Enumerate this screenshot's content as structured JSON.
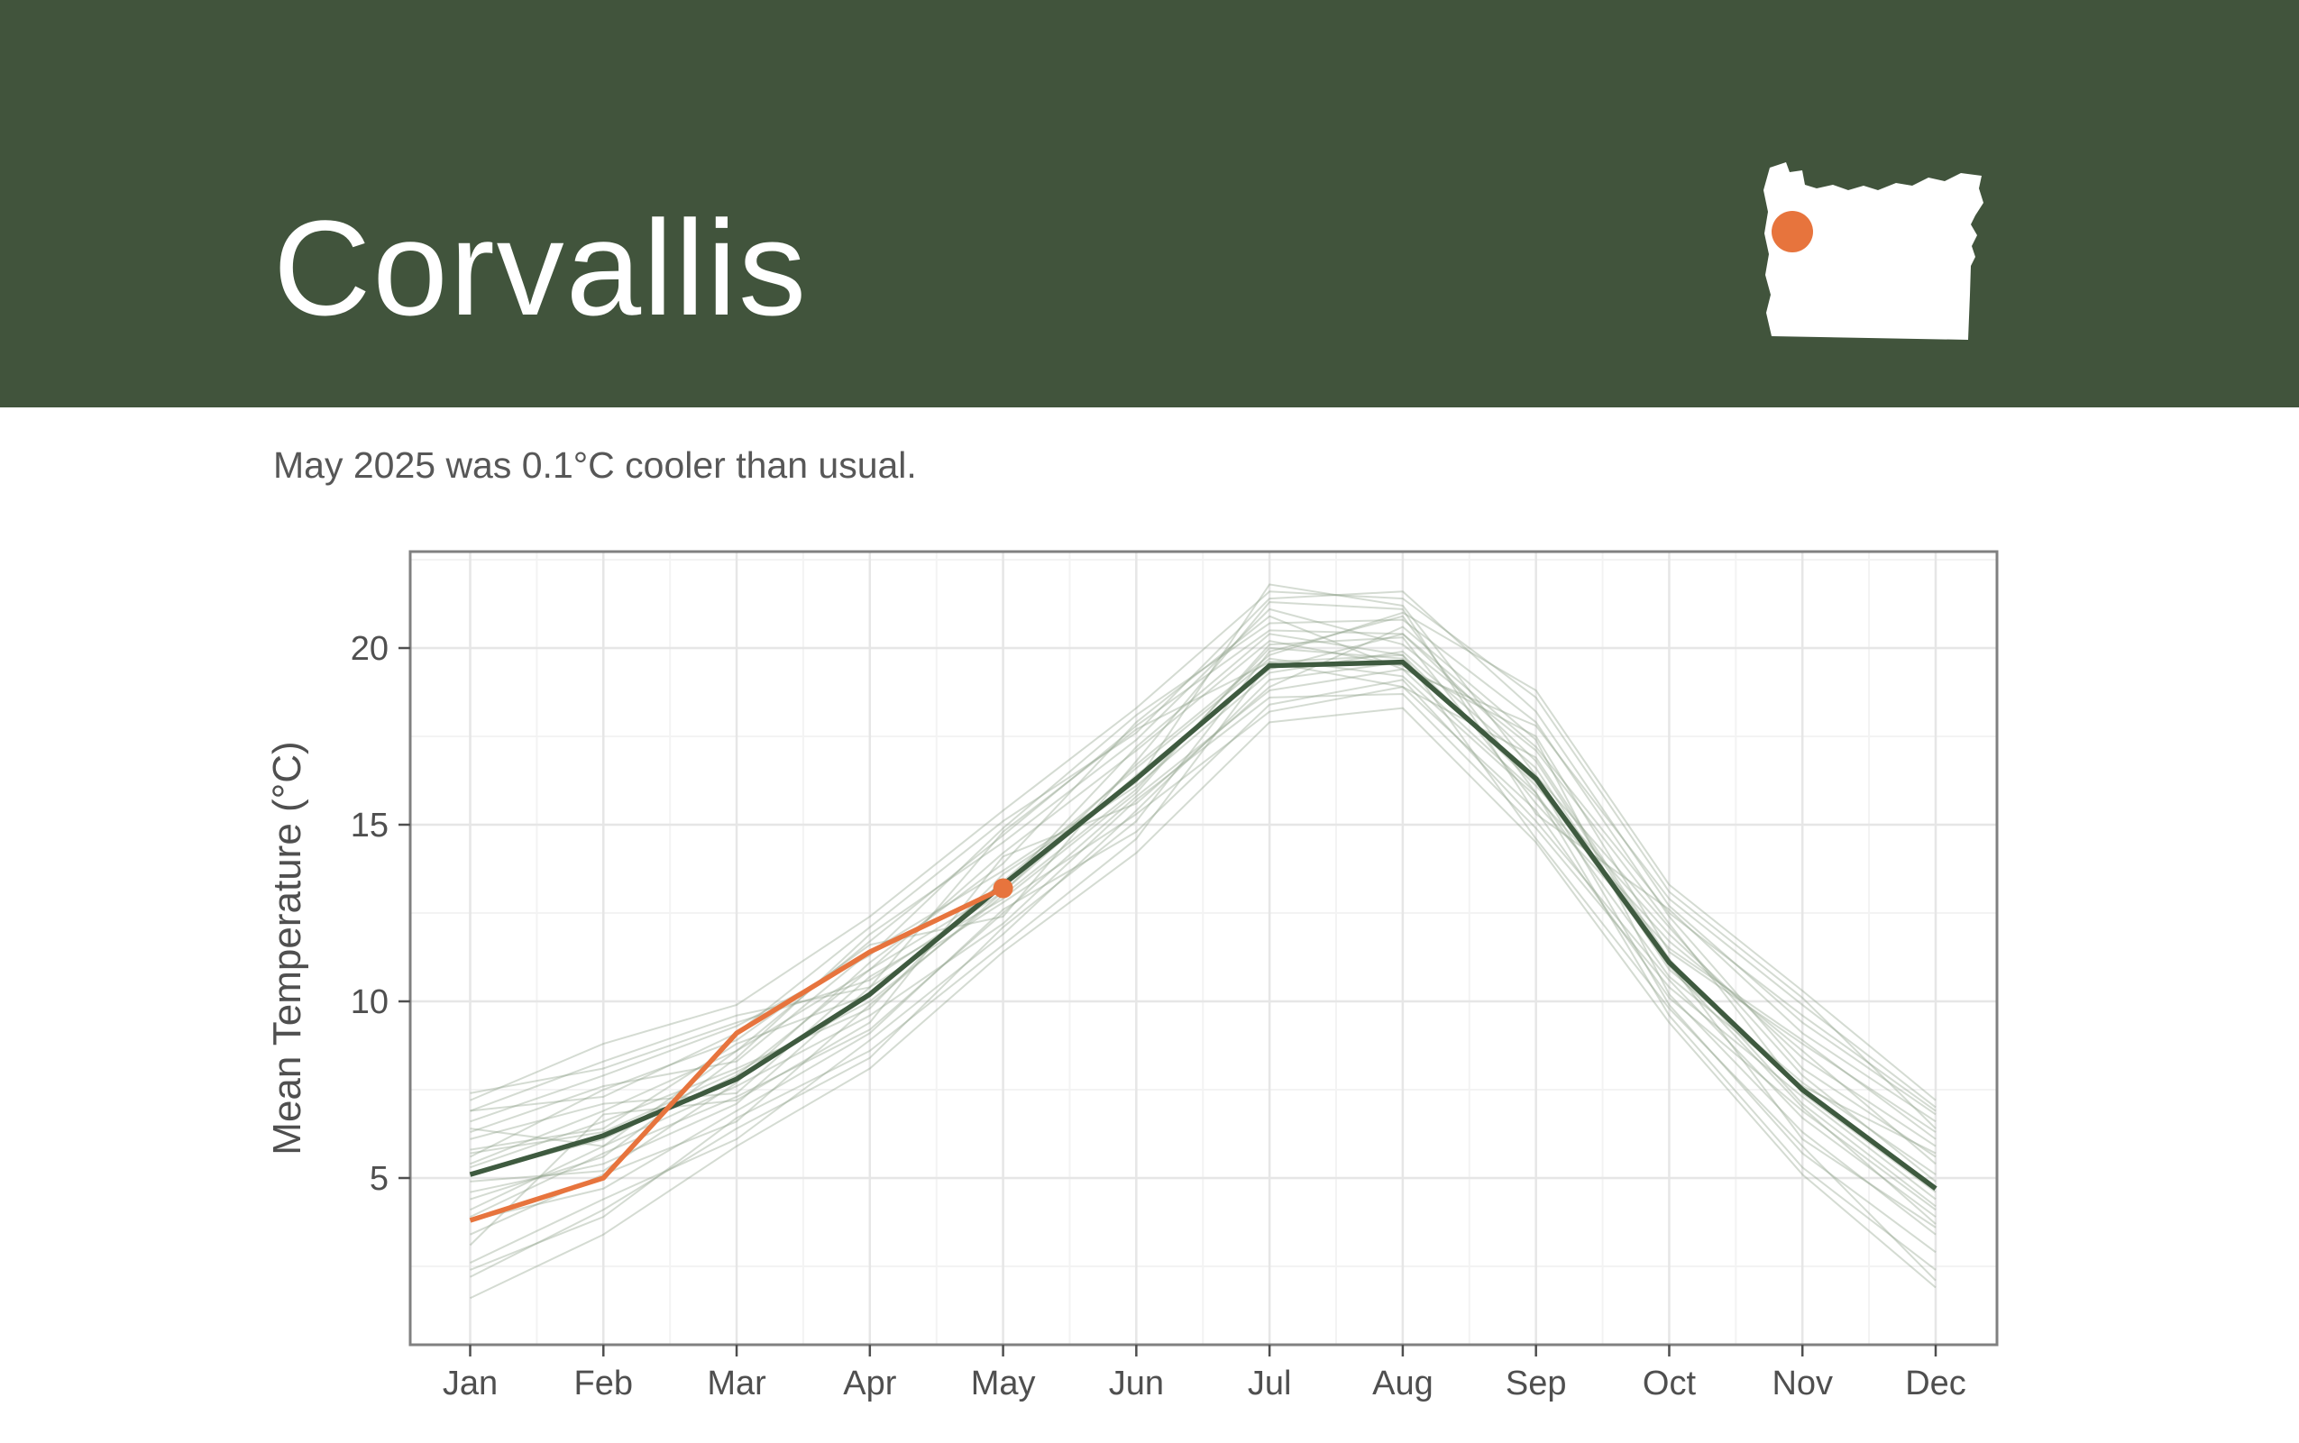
{
  "header": {
    "title": "Corvallis",
    "bg_color": "#41543c",
    "map": {
      "label": "oregon-state-silhouette",
      "fill": "#ffffff",
      "dot_color": "#e7743d"
    }
  },
  "subtitle": "May 2025 was 0.1°C cooler than usual.",
  "chart_data": {
    "type": "line",
    "title": "",
    "xlabel": "",
    "ylabel": "Mean Temperature (°C)",
    "categories": [
      "Jan",
      "Feb",
      "Mar",
      "Apr",
      "May",
      "Jun",
      "Jul",
      "Aug",
      "Sep",
      "Oct",
      "Nov",
      "Dec"
    ],
    "yticks": [
      5,
      10,
      15,
      20
    ],
    "yticks_minor": [
      2.5,
      7.5,
      12.5,
      17.5,
      22.5
    ],
    "ylim": [
      0.3,
      22.7
    ],
    "grid": true,
    "legend": false,
    "colors": {
      "mean_line": "#3e5a3f",
      "current_year": "#e7743d",
      "background_years": "#8fa089",
      "grid_major": "#e6e6e6",
      "grid_minor": "#f3f3f3",
      "panel_border": "#808080",
      "tick": "#4f4f4f",
      "text": "#4f4f4f"
    },
    "series": [
      {
        "name": "historical_mean",
        "role": "mean",
        "values": [
          5.1,
          6.2,
          7.8,
          10.2,
          13.3,
          16.3,
          19.5,
          19.6,
          16.3,
          11.1,
          7.5,
          4.7
        ]
      },
      {
        "name": "2025",
        "role": "current",
        "values": [
          3.8,
          5.0,
          9.1,
          11.4,
          13.2,
          null,
          null,
          null,
          null,
          null,
          null,
          null
        ],
        "end_marker": {
          "month": "May",
          "value": 13.2
        }
      }
    ],
    "background_years": [
      [
        6.4,
        5.9,
        8.6,
        10.9,
        13.2,
        17.2,
        20.4,
        19.8,
        16.1,
        11.9,
        8.4,
        5.9
      ],
      [
        3.1,
        6.8,
        7.2,
        9.4,
        14.1,
        15.6,
        18.9,
        20.6,
        17.4,
        10.2,
        6.3,
        3.4
      ],
      [
        5.6,
        7.5,
        8.9,
        11.6,
        12.4,
        16.8,
        21.3,
        21.1,
        15.3,
        12.6,
        9.1,
        6.6
      ],
      [
        6.9,
        8.3,
        9.6,
        10.4,
        14.8,
        17.7,
        19.6,
        18.9,
        16.9,
        11.2,
        7.1,
        4.2
      ],
      [
        2.2,
        4.1,
        6.4,
        8.4,
        12.1,
        15.1,
        19.9,
        20.9,
        15.9,
        9.6,
        5.3,
        2.4
      ],
      [
        4.9,
        5.2,
        7.7,
        11.1,
        13.9,
        17.9,
        20.9,
        19.4,
        17.8,
        12.9,
        9.9,
        7.0
      ],
      [
        7.2,
        8.8,
        9.9,
        12.4,
        15.4,
        18.3,
        21.6,
        21.4,
        18.6,
        13.1,
        10.1,
        6.4
      ],
      [
        1.6,
        3.4,
        5.9,
        8.1,
        11.4,
        14.2,
        17.9,
        18.3,
        14.5,
        9.4,
        5.1,
        1.9
      ],
      [
        5.3,
        6.6,
        8.1,
        9.8,
        13.6,
        16.1,
        19.3,
        19.9,
        16.6,
        10.9,
        7.7,
        5.1
      ],
      [
        6.1,
        7.1,
        7.4,
        10.7,
        12.9,
        15.9,
        20.1,
        20.3,
        15.6,
        11.5,
        8.9,
        6.1
      ],
      [
        4.4,
        5.6,
        8.4,
        11.9,
        14.5,
        17.4,
        21.1,
        20.1,
        17.1,
        12.2,
        7.4,
        4.6
      ],
      [
        3.8,
        4.7,
        6.9,
        9.1,
        12.6,
        14.8,
        18.4,
        19.1,
        15.1,
        10.6,
        6.7,
        3.9
      ],
      [
        6.6,
        7.9,
        9.3,
        11.3,
        14.9,
        18.1,
        20.7,
        20.8,
        17.9,
        12.4,
        8.1,
        5.6
      ],
      [
        2.6,
        4.4,
        6.1,
        8.9,
        11.9,
        15.4,
        19.1,
        19.6,
        16.3,
        9.9,
        5.7,
        2.9
      ],
      [
        5.8,
        6.4,
        8.8,
        10.2,
        13.4,
        16.6,
        19.7,
        19.2,
        15.8,
        11.7,
        8.6,
        5.4
      ],
      [
        4.1,
        5.9,
        7.6,
        9.6,
        12.2,
        15.7,
        18.6,
        18.7,
        14.9,
        10.4,
        7.3,
        4.4
      ],
      [
        6.9,
        7.3,
        9.1,
        12.1,
        15.1,
        17.6,
        21.4,
        21.6,
        18.2,
        12.7,
        9.4,
        6.8
      ],
      [
        3.4,
        5.1,
        6.6,
        9.9,
        13.1,
        16.4,
        19.4,
        20.4,
        16.8,
        11.1,
        6.1,
        3.6
      ],
      [
        5.1,
        6.1,
        7.9,
        10.9,
        14.2,
        17.1,
        20.2,
        19.5,
        17.5,
        11.4,
        8.8,
        6.3
      ],
      [
        6.3,
        7.6,
        8.3,
        11.4,
        13.7,
        16.2,
        21.8,
        21.2,
        16.4,
        12.1,
        7.9,
        4.9
      ],
      [
        4.6,
        5.4,
        7.1,
        10.4,
        12.8,
        15.3,
        18.2,
        18.9,
        15.4,
        10.1,
        6.9,
        4.1
      ],
      [
        2.4,
        3.9,
        6.7,
        8.6,
        11.6,
        14.6,
        19.6,
        19.8,
        14.6,
        9.8,
        5.9,
        2.1
      ],
      [
        5.4,
        6.9,
        8.6,
        11.7,
        14.7,
        17.8,
        20.5,
        20.4,
        17.2,
        12.5,
        9.6,
        6.9
      ],
      [
        7.4,
        8.1,
        9.4,
        10.6,
        13.1,
        16.7,
        19.8,
        21.0,
        18.8,
        13.3,
        10.3,
        7.2
      ],
      [
        3.9,
        5.7,
        7.3,
        9.2,
        12.5,
        15.8,
        18.8,
        19.4,
        15.9,
        10.7,
        7.6,
        5.7
      ],
      [
        5.7,
        6.3,
        8.0,
        10.0,
        13.0,
        16.0,
        20.0,
        19.7,
        16.2,
        11.0,
        7.0,
        3.7
      ]
    ]
  }
}
